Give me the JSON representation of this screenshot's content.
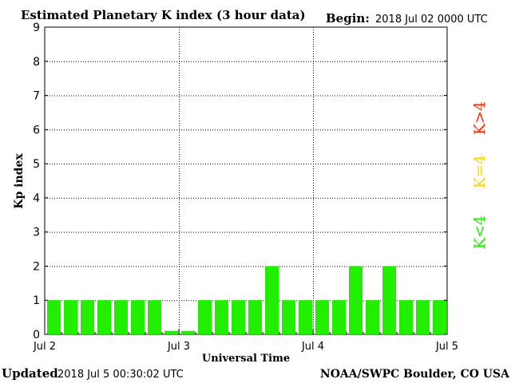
{
  "header": {
    "title": "Estimated Planetary K index (3 hour data)",
    "begin_label": "Begin:",
    "begin_value": "2018 Jul 02 0000 UTC"
  },
  "footer": {
    "updated_label": "Updated",
    "updated_value": "2018 Jul  5 00:30:02 UTC",
    "source": "NOAA/SWPC Boulder, CO USA"
  },
  "legend": [
    {
      "label": "K>4",
      "color": "#ff2a00"
    },
    {
      "label": "K=4",
      "color": "#ffd400"
    },
    {
      "label": "K<4",
      "color": "#22ee00"
    }
  ],
  "chart_data": {
    "type": "bar",
    "title": "Estimated Planetary K index (3 hour data)",
    "xlabel": "Universal Time",
    "ylabel": "Kp index",
    "ylim": [
      0,
      9
    ],
    "yticks": [
      "0",
      "1",
      "2",
      "3",
      "4",
      "5",
      "6",
      "7",
      "8",
      "9"
    ],
    "x_tick_labels": [
      "Jul 2",
      "Jul 3",
      "Jul 4",
      "Jul 5"
    ],
    "intervals_per_day": 8,
    "grid": true,
    "bar_color": "#22ee00",
    "values": [
      1,
      1,
      1,
      1,
      1,
      1,
      1,
      0.1,
      0.1,
      1,
      1,
      1,
      1,
      2,
      1,
      1,
      1,
      1,
      2,
      1,
      2,
      1,
      1,
      1
    ]
  }
}
